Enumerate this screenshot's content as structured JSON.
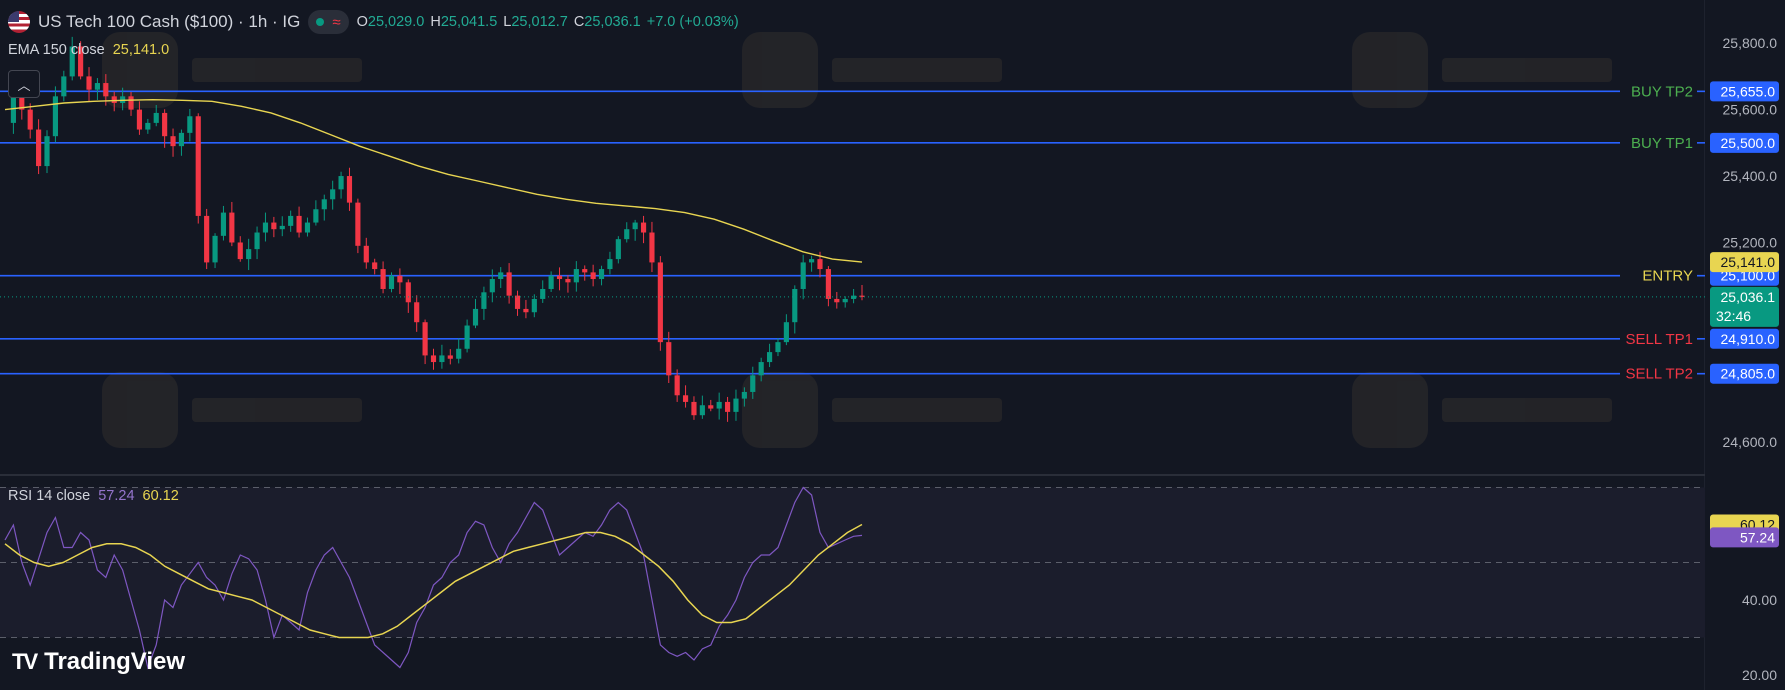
{
  "header": {
    "symbol_title": "US Tech 100 Cash ($100) · 1h · IG",
    "open_label": "O",
    "open_value": "25,029.0",
    "high_label": "H",
    "high_value": "25,041.5",
    "low_label": "L",
    "low_value": "25,012.7",
    "close_label": "C",
    "close_value": "25,036.1",
    "change": "+7.0 (+0.03%)"
  },
  "ema_legend": {
    "name": "EMA 150 close",
    "value": "25,141.0"
  },
  "rsi_legend": {
    "name": "RSI 14 close",
    "rsi_value": "57.24",
    "ma_value": "60.12"
  },
  "logo": {
    "text": "TradingView"
  },
  "colors": {
    "background": "#131722",
    "level_line": "#2962ff",
    "ema": "#e8d551",
    "rsi": "#7e57c2",
    "rsi_ma": "#e8d551",
    "up_candle": "#089981",
    "down_candle": "#f23645",
    "buy_label": "#4caf50",
    "sell_label": "#f23645",
    "entry_label": "#e8d551"
  },
  "chart_data": [
    {
      "type": "candlestick",
      "title": "US Tech 100 Cash ($100) · 1h · IG",
      "ylim": [
        24500,
        25930
      ],
      "y_ticks": [
        "25,800.0",
        "25,600.0",
        "25,400.0",
        "25,200.0",
        "24,600.0"
      ],
      "y_tick_values": [
        25800,
        25600,
        25400,
        25200,
        24600
      ],
      "candles_close_path": [
        25560,
        25640,
        25600,
        25540,
        25430,
        25520,
        25640,
        25700,
        25790,
        25700,
        25660,
        25680,
        25640,
        25620,
        25640,
        25600,
        25540,
        25560,
        25590,
        25520,
        25490,
        25530,
        25580,
        25280,
        25140,
        25220,
        25290,
        25200,
        25150,
        25180,
        25230,
        25260,
        25240,
        25250,
        25280,
        25230,
        25260,
        25300,
        25330,
        25360,
        25400,
        25320,
        25190,
        25140,
        25120,
        25060,
        25100,
        25080,
        25020,
        24960,
        24860,
        24840,
        24860,
        24850,
        24880,
        24950,
        25000,
        25050,
        25090,
        25110,
        25040,
        25000,
        24990,
        25030,
        25060,
        25100,
        25090,
        25080,
        25120,
        25110,
        25090,
        25120,
        25150,
        25210,
        25240,
        25260,
        25230,
        25140,
        24900,
        24800,
        24740,
        24720,
        24680,
        24710,
        24700,
        24720,
        24690,
        24730,
        24750,
        24800,
        24840,
        24870,
        24900,
        24960,
        25060,
        25140,
        25150,
        25120,
        25030,
        25020,
        25030,
        25040,
        25036
      ],
      "horizontal_levels": [
        {
          "label": "BUY TP2",
          "value": 25655,
          "price_label": "25,655.0"
        },
        {
          "label": "BUY TP1",
          "value": 25500,
          "price_label": "25,500.0"
        },
        {
          "label": "ENTRY",
          "value": 25100,
          "price_label": "25,100.0"
        },
        {
          "label": "SELL TP1",
          "value": 24910,
          "price_label": "24,910.0"
        },
        {
          "label": "SELL TP2",
          "value": 24805,
          "price_label": "24,805.0"
        }
      ],
      "ema_150": {
        "name": "EMA 150 close",
        "last_value": 25141.0,
        "values": [
          25600,
          25610,
          25620,
          25625,
          25628,
          25630,
          25628,
          25625,
          25610,
          25590,
          25560,
          25525,
          25490,
          25460,
          25430,
          25405,
          25385,
          25365,
          25345,
          25330,
          25318,
          25310,
          25302,
          25290,
          25270,
          25240,
          25205,
          25172,
          25150,
          25141
        ]
      },
      "last_price": {
        "value": 25036.1,
        "price_label": "25,036.1",
        "countdown": "32:46"
      }
    },
    {
      "type": "line",
      "title": "RSI 14 close",
      "ylim": [
        16,
        72
      ],
      "y_ticks": [
        "40.00",
        "20.00"
      ],
      "y_tick_values": [
        40,
        20
      ],
      "bands": [
        70,
        50,
        30
      ],
      "series": [
        {
          "name": "RSI 14",
          "last_value": 57.24,
          "values": [
            56,
            60,
            50,
            44,
            51,
            58,
            62,
            54,
            54,
            58,
            56,
            48,
            46,
            52,
            48,
            40,
            32,
            22,
            28,
            40,
            38,
            44,
            47,
            50,
            46,
            44,
            40,
            47,
            52,
            51,
            48,
            40,
            30,
            36,
            34,
            32,
            42,
            48,
            52,
            54,
            50,
            46,
            40,
            34,
            28,
            26,
            24,
            22,
            26,
            34,
            38,
            44,
            46,
            50,
            52,
            58,
            61,
            60,
            54,
            50,
            55,
            58,
            62,
            66,
            64,
            58,
            52,
            54,
            56,
            58,
            57,
            60,
            64,
            66,
            64,
            58,
            52,
            40,
            28,
            26,
            25,
            26,
            24,
            27,
            28,
            33,
            36,
            40,
            46,
            50,
            52,
            52,
            54,
            60,
            66,
            70,
            68,
            58,
            54,
            55,
            56,
            57,
            57.24
          ]
        },
        {
          "name": "RSI MA",
          "last_value": 60.12,
          "values": [
            55,
            52,
            50,
            49,
            50,
            52,
            54,
            55,
            55,
            54,
            52,
            49,
            47,
            45,
            43,
            42,
            41,
            40,
            38,
            36,
            34,
            32,
            31,
            30,
            30,
            30,
            31,
            33,
            36,
            39,
            42,
            45,
            47,
            49,
            51,
            53,
            54,
            55,
            56,
            57,
            58,
            58,
            57,
            55,
            52,
            49,
            45,
            40,
            36,
            34,
            34,
            35,
            38,
            41,
            44,
            48,
            52,
            55,
            58,
            60.12
          ]
        }
      ]
    }
  ]
}
